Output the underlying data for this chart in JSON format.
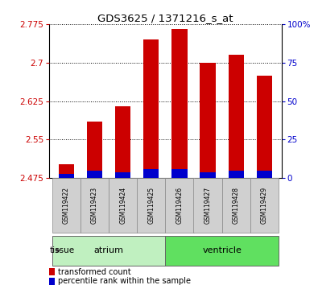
{
  "title": "GDS3625 / 1371216_s_at",
  "samples": [
    "GSM119422",
    "GSM119423",
    "GSM119424",
    "GSM119425",
    "GSM119426",
    "GSM119427",
    "GSM119428",
    "GSM119429"
  ],
  "transformed_count": [
    2.502,
    2.585,
    2.615,
    2.745,
    2.765,
    2.7,
    2.715,
    2.675
  ],
  "percentile_rank_pct": [
    3,
    5,
    4,
    6,
    6,
    4,
    5,
    5
  ],
  "base_value": 2.475,
  "ylim_left": [
    2.475,
    2.775
  ],
  "ylim_right": [
    0,
    100
  ],
  "yticks_left": [
    2.475,
    2.55,
    2.625,
    2.7,
    2.775
  ],
  "yticks_right": [
    0,
    25,
    50,
    75,
    100
  ],
  "ytick_labels_left": [
    "2.475",
    "2.55",
    "2.625",
    "2.7",
    "2.775"
  ],
  "ytick_labels_right": [
    "0",
    "25",
    "50",
    "75",
    "100%"
  ],
  "groups": [
    {
      "label": "atrium",
      "indices": [
        0,
        1,
        2,
        3
      ],
      "color": "#c0f0c0"
    },
    {
      "label": "ventricle",
      "indices": [
        4,
        5,
        6,
        7
      ],
      "color": "#60e060"
    }
  ],
  "tissue_label": "tissue",
  "bar_color_red": "#cc0000",
  "bar_color_blue": "#0000cc",
  "bar_width": 0.55,
  "plot_bg": "#ffffff",
  "sample_box_color": "#d0d0d0",
  "legend_items": [
    "transformed count",
    "percentile rank within the sample"
  ]
}
